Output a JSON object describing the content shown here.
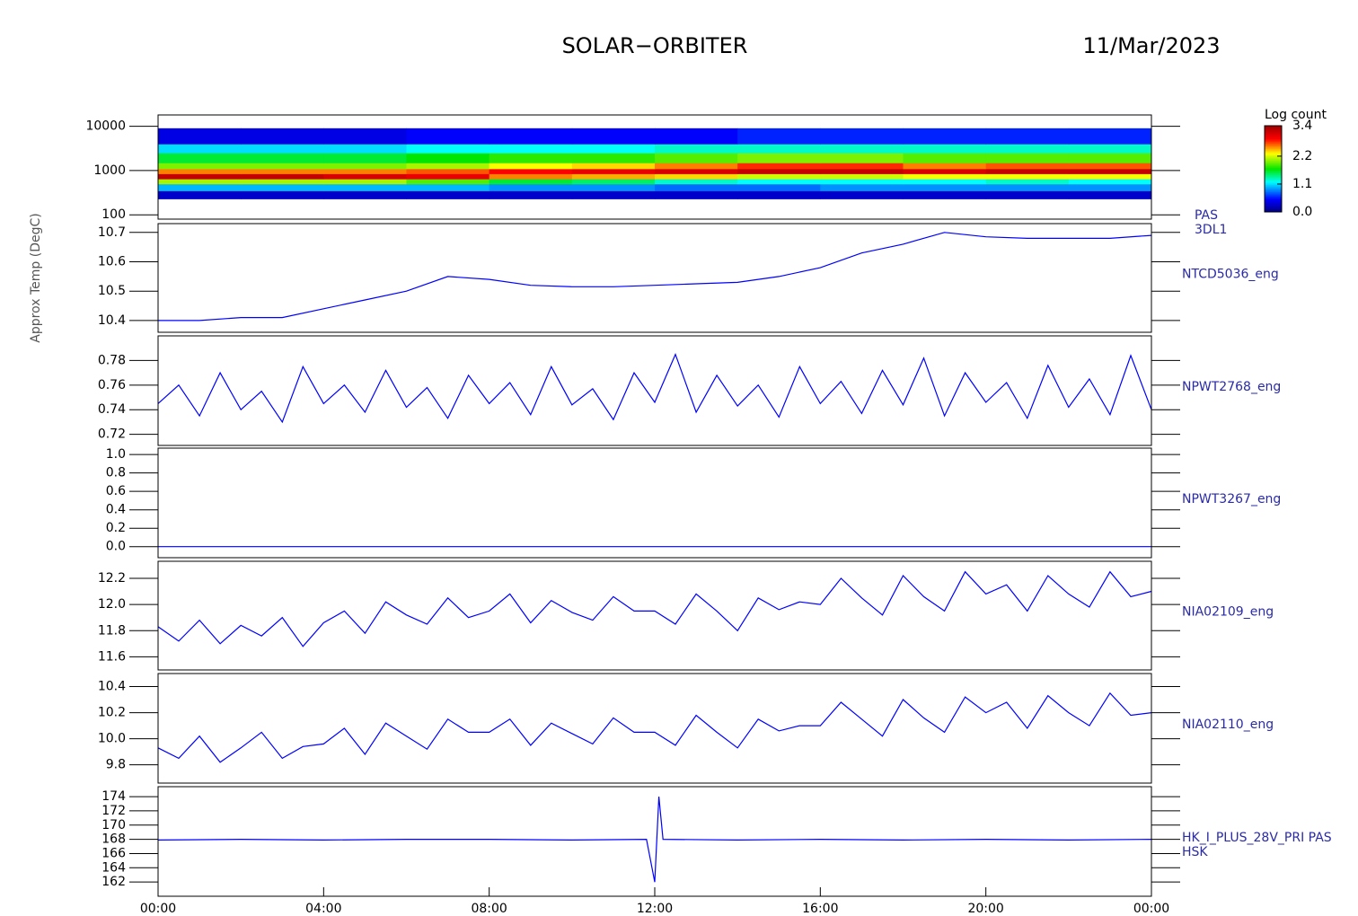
{
  "chart_data": [
    {
      "type": "heatmap",
      "title": "SOLAR−ORBITER",
      "subtitle": "11/Mar/2023",
      "label_lines": [
        "PAS",
        "3DL1"
      ],
      "xlim": [
        0,
        24
      ],
      "x": [
        0,
        2,
        4,
        6,
        8,
        10,
        12,
        14,
        16,
        18,
        20,
        22,
        24
      ],
      "y": [
        230,
        350,
        500,
        650,
        850,
        1100,
        1500,
        2500,
        4000,
        9000
      ],
      "ylim": [
        80,
        18000
      ],
      "ylog": true,
      "yticks": [
        100,
        1000,
        10000
      ],
      "values": [
        [
          0.3,
          0.3,
          0.3,
          0.3,
          0.3,
          0.3,
          0.3,
          0.3,
          0.3,
          0.3,
          0.3,
          0.3
        ],
        [
          1.0,
          1.0,
          1.0,
          1.0,
          0.9,
          0.9,
          0.8,
          0.8,
          0.9,
          0.9,
          0.9,
          0.9
        ],
        [
          2.1,
          2.1,
          2.1,
          1.9,
          1.6,
          1.5,
          1.3,
          1.2,
          1.2,
          1.2,
          1.3,
          1.2
        ],
        [
          3.2,
          3.2,
          3.1,
          3.0,
          2.6,
          2.5,
          2.4,
          2.2,
          2.2,
          2.3,
          2.3,
          2.3
        ],
        [
          2.6,
          2.6,
          2.6,
          2.7,
          2.9,
          3.0,
          3.1,
          3.2,
          3.2,
          3.1,
          3.2,
          3.2
        ],
        [
          2.0,
          2.0,
          2.0,
          2.1,
          2.3,
          2.4,
          2.6,
          2.8,
          2.8,
          2.6,
          2.7,
          2.7
        ],
        [
          1.6,
          1.6,
          1.6,
          1.7,
          1.8,
          1.8,
          1.9,
          2.0,
          2.0,
          1.9,
          1.9,
          1.9
        ],
        [
          1.1,
          1.1,
          1.1,
          1.2,
          1.2,
          1.2,
          1.3,
          1.3,
          1.3,
          1.3,
          1.3,
          1.3
        ],
        [
          0.4,
          0.4,
          0.4,
          0.5,
          0.5,
          0.5,
          0.5,
          0.6,
          0.6,
          0.6,
          0.6,
          0.6
        ]
      ],
      "colorbar": {
        "title": "Log count",
        "zlim": [
          0,
          3.4
        ],
        "ticks": [
          {
            "value": 0,
            "label": "0.0"
          },
          1.1,
          2.2,
          3.4
        ]
      }
    },
    {
      "type": "line",
      "label_lines": [
        "NTCD5036_eng"
      ],
      "ylabel": "Approx Temp (DegC)",
      "color": "#0000ff",
      "xlim": [
        0,
        24
      ],
      "ylim": [
        10.36,
        10.73
      ],
      "yticks": [
        10.4,
        10.5,
        10.6,
        10.7
      ],
      "x": [
        0,
        1,
        2,
        3,
        4,
        5,
        6,
        7,
        8,
        9,
        10,
        11,
        12,
        13,
        14,
        15,
        16,
        17,
        18,
        19,
        20,
        21,
        22,
        23,
        24
      ],
      "values": [
        10.4,
        10.4,
        10.41,
        10.41,
        10.44,
        10.47,
        10.5,
        10.55,
        10.54,
        10.52,
        10.515,
        10.515,
        10.52,
        10.525,
        10.53,
        10.55,
        10.58,
        10.63,
        10.66,
        10.7,
        10.685,
        10.68,
        10.68,
        10.68,
        10.69
      ]
    },
    {
      "type": "line",
      "label_lines": [
        "NPWT2768_eng"
      ],
      "color": "#0000ff",
      "xlim": [
        0,
        24
      ],
      "ylim": [
        0.711,
        0.8
      ],
      "yticks": [
        0.72,
        0.74,
        0.76,
        0.78
      ],
      "x": [
        0,
        0.5,
        1,
        1.5,
        2,
        2.5,
        3,
        3.5,
        4,
        4.5,
        5,
        5.5,
        6,
        6.5,
        7,
        7.5,
        8,
        8.5,
        9,
        9.5,
        10,
        10.5,
        11,
        11.5,
        12,
        12.5,
        13,
        13.5,
        14,
        14.5,
        15,
        15.5,
        16,
        16.5,
        17,
        17.5,
        18,
        18.5,
        19,
        19.5,
        20,
        20.5,
        21,
        21.5,
        22,
        22.5,
        23,
        23.5,
        24
      ],
      "values": [
        0.745,
        0.76,
        0.735,
        0.77,
        0.74,
        0.755,
        0.73,
        0.775,
        0.745,
        0.76,
        0.738,
        0.772,
        0.742,
        0.758,
        0.733,
        0.768,
        0.745,
        0.762,
        0.736,
        0.775,
        0.744,
        0.757,
        0.732,
        0.77,
        0.746,
        0.785,
        0.738,
        0.768,
        0.743,
        0.76,
        0.734,
        0.775,
        0.745,
        0.763,
        0.737,
        0.772,
        0.744,
        0.782,
        0.735,
        0.77,
        0.746,
        0.762,
        0.733,
        0.776,
        0.742,
        0.765,
        0.736,
        0.784,
        0.74
      ]
    },
    {
      "type": "line",
      "label_lines": [
        "NPWT3267_eng"
      ],
      "color": "#0000ff",
      "xlim": [
        0,
        24
      ],
      "ylim": [
        -0.12,
        1.07
      ],
      "yticks": [
        {
          "value": 0,
          "label": "0.0"
        },
        0.2,
        0.4,
        0.6,
        0.8,
        {
          "value": 1,
          "label": "1.0"
        }
      ],
      "x": [
        0,
        6,
        12,
        18,
        24
      ],
      "values": [
        0,
        0,
        0,
        0,
        0
      ]
    },
    {
      "type": "line",
      "label_lines": [
        "NIA02109_eng"
      ],
      "color": "#0000ff",
      "xlim": [
        0,
        24
      ],
      "ylim": [
        11.5,
        12.33
      ],
      "yticks": [
        11.6,
        11.8,
        {
          "value": 12,
          "label": "12.0"
        },
        12.2
      ],
      "x": [
        0,
        0.5,
        1,
        1.5,
        2,
        2.5,
        3,
        3.5,
        4,
        4.5,
        5,
        5.5,
        6,
        6.5,
        7,
        7.5,
        8,
        8.5,
        9,
        9.5,
        10,
        10.5,
        11,
        11.5,
        12,
        12.5,
        13,
        13.5,
        14,
        14.5,
        15,
        15.5,
        16,
        16.5,
        17,
        17.5,
        18,
        18.5,
        19,
        19.5,
        20,
        20.5,
        21,
        21.5,
        22,
        22.5,
        23,
        23.5,
        24
      ],
      "values": [
        11.83,
        11.72,
        11.88,
        11.7,
        11.84,
        11.76,
        11.9,
        11.68,
        11.86,
        11.95,
        11.78,
        12.02,
        11.92,
        11.85,
        12.05,
        11.9,
        11.95,
        12.08,
        11.86,
        12.03,
        11.94,
        11.88,
        12.06,
        11.95,
        11.95,
        11.85,
        12.08,
        11.95,
        11.8,
        12.05,
        11.96,
        12.02,
        12.0,
        12.2,
        12.05,
        11.92,
        12.22,
        12.06,
        11.95,
        12.25,
        12.08,
        12.15,
        11.95,
        12.22,
        12.08,
        11.98,
        12.25,
        12.06,
        12.1
      ]
    },
    {
      "type": "line",
      "label_lines": [
        "NIA02110_eng"
      ],
      "color": "#0000ff",
      "xlim": [
        0,
        24
      ],
      "ylim": [
        9.66,
        10.5
      ],
      "yticks": [
        9.8,
        {
          "value": 10,
          "label": "10.0"
        },
        10.2,
        10.4
      ],
      "x": [
        0,
        0.5,
        1,
        1.5,
        2,
        2.5,
        3,
        3.5,
        4,
        4.5,
        5,
        5.5,
        6,
        6.5,
        7,
        7.5,
        8,
        8.5,
        9,
        9.5,
        10,
        10.5,
        11,
        11.5,
        12,
        12.5,
        13,
        13.5,
        14,
        14.5,
        15,
        15.5,
        16,
        16.5,
        17,
        17.5,
        18,
        18.5,
        19,
        19.5,
        20,
        20.5,
        21,
        21.5,
        22,
        22.5,
        23,
        23.5,
        24
      ],
      "values": [
        9.93,
        9.85,
        10.02,
        9.82,
        9.93,
        10.05,
        9.85,
        9.94,
        9.96,
        10.08,
        9.88,
        10.12,
        10.02,
        9.92,
        10.15,
        10.05,
        10.05,
        10.15,
        9.95,
        10.12,
        10.04,
        9.96,
        10.16,
        10.05,
        10.05,
        9.95,
        10.18,
        10.05,
        9.93,
        10.15,
        10.06,
        10.1,
        10.1,
        10.28,
        10.15,
        10.02,
        10.3,
        10.16,
        10.05,
        10.32,
        10.2,
        10.28,
        10.08,
        10.33,
        10.2,
        10.1,
        10.35,
        10.18,
        10.2
      ]
    },
    {
      "type": "line",
      "label_lines": [
        "HK_I_PLUS_28V_PRI PAS",
        "HSK"
      ],
      "color": "#0000ff",
      "xlim": [
        0,
        24
      ],
      "ylim": [
        160,
        175.4
      ],
      "yticks": [
        162,
        164,
        166,
        168,
        170,
        172,
        174
      ],
      "xticks": [
        {
          "value": 0,
          "label": "00:00"
        },
        {
          "value": 4,
          "label": "04:00"
        },
        {
          "value": 8,
          "label": "08:00"
        },
        {
          "value": 12,
          "label": "12:00"
        },
        {
          "value": 16,
          "label": "16:00"
        },
        {
          "value": 20,
          "label": "20:00"
        },
        {
          "value": 24,
          "label": "00:00"
        }
      ],
      "x": [
        0,
        2,
        4,
        6,
        8,
        10,
        11.8,
        12,
        12.1,
        12.2,
        14,
        16,
        18,
        20,
        22,
        24
      ],
      "values": [
        167.9,
        168,
        167.9,
        168,
        168,
        167.9,
        168,
        162,
        174,
        168,
        167.9,
        168,
        167.9,
        168,
        167.9,
        168
      ]
    }
  ]
}
